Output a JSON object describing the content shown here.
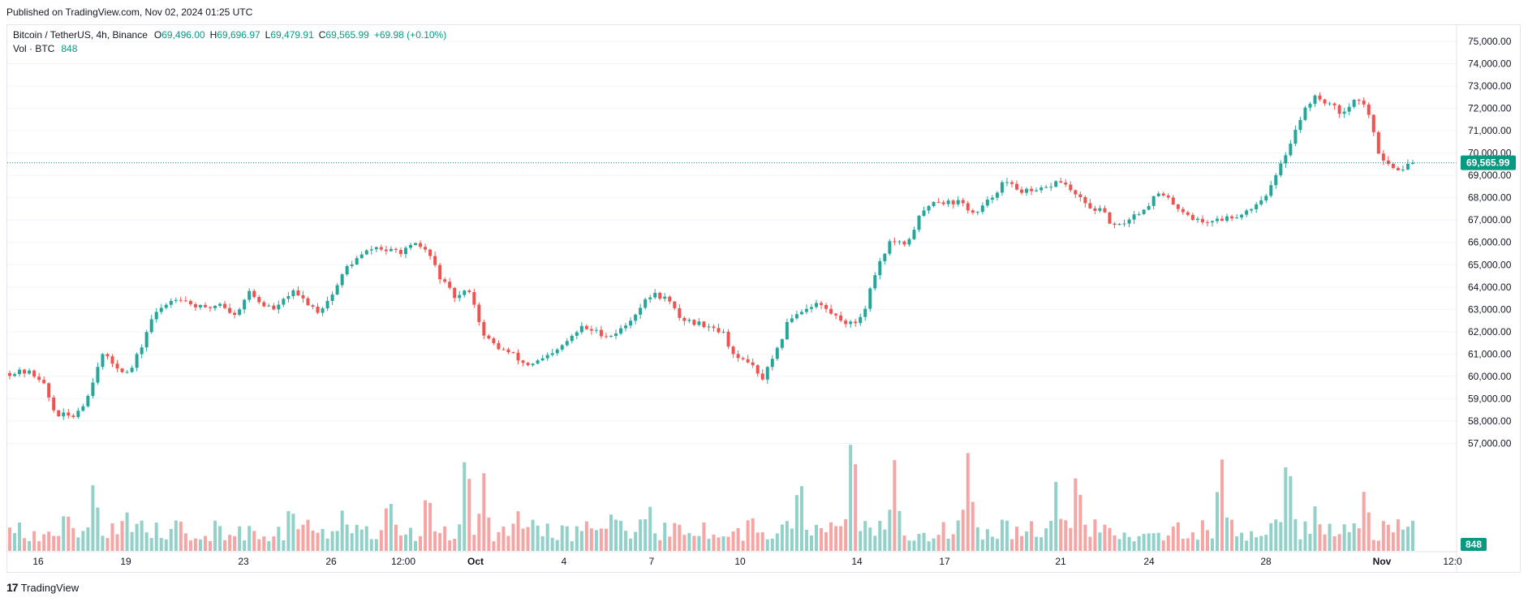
{
  "header": {
    "published": "Published on TradingView.com, Nov 02, 2024 01:25 UTC"
  },
  "legend": {
    "symbol": "Bitcoin / TetherUS, 4h, Binance",
    "o_label": "O",
    "o_value": "69,496.00",
    "h_label": "H",
    "h_value": "69,696.97",
    "l_label": "L",
    "l_value": "69,479.91",
    "c_label": "C",
    "c_value": "69,565.99",
    "change": "+69.98 (+0.10%)",
    "vol_label": "Vol · BTC",
    "vol_value": "848"
  },
  "footer": {
    "logo_glyph": "17",
    "brand": "TradingView"
  },
  "colors": {
    "up": "#26a69a",
    "down": "#ef5350",
    "up_vol": "#92d1c9",
    "down_vol": "#f5a5a4",
    "last_price": "#089981",
    "grid": "#f0f3fa"
  },
  "chart_data": {
    "type": "candlestick",
    "symbol": "Bitcoin / TetherUS",
    "interval": "4h",
    "exchange": "Binance",
    "price_axis_labels": [
      "75,000.00",
      "74,000.00",
      "73,000.00",
      "72,000.00",
      "71,000.00",
      "70,000.00",
      "69,000.00",
      "68,000.00",
      "67,000.00",
      "66,000.00",
      "65,000.00",
      "64,000.00",
      "63,000.00",
      "62,000.00",
      "61,000.00",
      "60,000.00",
      "59,000.00",
      "58,000.00",
      "57,000.00"
    ],
    "last_price_label": "69,565.99",
    "last_volume_label": "848",
    "time_axis_labels": [
      {
        "label": "16",
        "bold": false
      },
      {
        "label": "19",
        "bold": false
      },
      {
        "label": "23",
        "bold": false
      },
      {
        "label": "26",
        "bold": false
      },
      {
        "label": "12:00",
        "bold": false
      },
      {
        "label": "Oct",
        "bold": true
      },
      {
        "label": "4",
        "bold": false
      },
      {
        "label": "7",
        "bold": false
      },
      {
        "label": "10",
        "bold": false
      },
      {
        "label": "14",
        "bold": false
      },
      {
        "label": "17",
        "bold": false
      },
      {
        "label": "21",
        "bold": false
      },
      {
        "label": "24",
        "bold": false
      },
      {
        "label": "28",
        "bold": false
      },
      {
        "label": "Nov",
        "bold": true
      },
      {
        "label": "12:0",
        "bold": false
      }
    ],
    "price_range": [
      56400,
      75400
    ],
    "last_price": 69566,
    "candle_count": 288,
    "anchors": [
      [
        0,
        60150
      ],
      [
        5,
        60200
      ],
      [
        9,
        59900
      ],
      [
        13,
        58300
      ],
      [
        18,
        58200
      ],
      [
        22,
        59000
      ],
      [
        26,
        61000
      ],
      [
        30,
        60500
      ],
      [
        34,
        60100
      ],
      [
        38,
        61500
      ],
      [
        40,
        62500
      ],
      [
        44,
        63200
      ],
      [
        48,
        63600
      ],
      [
        52,
        63200
      ],
      [
        56,
        63000
      ],
      [
        60,
        63300
      ],
      [
        64,
        62700
      ],
      [
        68,
        63800
      ],
      [
        72,
        63200
      ],
      [
        76,
        63000
      ],
      [
        80,
        63800
      ],
      [
        84,
        63400
      ],
      [
        88,
        62900
      ],
      [
        92,
        63700
      ],
      [
        96,
        64900
      ],
      [
        100,
        65400
      ],
      [
        104,
        65800
      ],
      [
        108,
        65600
      ],
      [
        112,
        65600
      ],
      [
        116,
        65900
      ],
      [
        119,
        65600
      ],
      [
        123,
        64300
      ],
      [
        127,
        63500
      ],
      [
        131,
        63900
      ],
      [
        135,
        61800
      ],
      [
        139,
        61300
      ],
      [
        143,
        61000
      ],
      [
        147,
        60500
      ],
      [
        151,
        60700
      ],
      [
        155,
        61000
      ],
      [
        159,
        61600
      ],
      [
        163,
        62200
      ],
      [
        167,
        62000
      ],
      [
        171,
        61800
      ],
      [
        175,
        62200
      ],
      [
        179,
        63000
      ],
      [
        183,
        63700
      ],
      [
        187,
        63500
      ],
      [
        191,
        62600
      ],
      [
        195,
        62400
      ],
      [
        199,
        62300
      ],
      [
        203,
        62000
      ],
      [
        207,
        60700
      ],
      [
        210,
        60800
      ],
      [
        214,
        59800
      ],
      [
        218,
        60900
      ],
      [
        222,
        62600
      ],
      [
        226,
        63000
      ],
      [
        230,
        63300
      ],
      [
        235,
        62700
      ],
      [
        240,
        62300
      ],
      [
        243,
        62800
      ],
      [
        247,
        64900
      ],
      [
        251,
        66100
      ],
      [
        255,
        65800
      ],
      [
        259,
        67100
      ],
      [
        263,
        67900
      ],
      [
        267,
        67800
      ],
      [
        271,
        67800
      ],
      [
        275,
        67200
      ],
      [
        279,
        67900
      ],
      [
        283,
        68700
      ],
      [
        287,
        68400
      ],
      [
        291,
        68200
      ],
      [
        295,
        68400
      ],
      [
        299,
        68800
      ],
      [
        303,
        68200
      ],
      [
        307,
        67600
      ],
      [
        311,
        67400
      ],
      [
        315,
        66600
      ],
      [
        319,
        67100
      ],
      [
        323,
        67500
      ],
      [
        327,
        68200
      ],
      [
        331,
        67800
      ],
      [
        335,
        67300
      ],
      [
        339,
        66900
      ],
      [
        343,
        67000
      ],
      [
        347,
        67100
      ],
      [
        351,
        67300
      ],
      [
        355,
        67700
      ],
      [
        359,
        68400
      ],
      [
        363,
        69800
      ],
      [
        367,
        71400
      ],
      [
        371,
        72500
      ],
      [
        375,
        72300
      ],
      [
        379,
        71800
      ],
      [
        383,
        72400
      ],
      [
        386,
        72200
      ],
      [
        390,
        70000
      ],
      [
        394,
        69300
      ],
      [
        398,
        69400
      ],
      [
        401,
        69500
      ]
    ],
    "volume_range": [
      0,
      20000
    ],
    "volume_peaks": [
      [
        16,
        6000
      ],
      [
        24,
        9500
      ],
      [
        33,
        5800
      ],
      [
        37,
        5000
      ],
      [
        48,
        5200
      ],
      [
        59,
        4800
      ],
      [
        80,
        6700
      ],
      [
        95,
        5800
      ],
      [
        108,
        7800
      ],
      [
        119,
        8600
      ],
      [
        130,
        14000
      ],
      [
        135,
        10000
      ],
      [
        145,
        5400
      ],
      [
        171,
        5100
      ],
      [
        182,
        6600
      ],
      [
        190,
        4700
      ],
      [
        211,
        5500
      ],
      [
        225,
        10500
      ],
      [
        240,
        16800
      ],
      [
        252,
        11500
      ],
      [
        273,
        12800
      ],
      [
        298,
        8800
      ],
      [
        304,
        11200
      ],
      [
        345,
        13100
      ],
      [
        364,
        13800
      ],
      [
        372,
        6200
      ],
      [
        386,
        8500
      ]
    ]
  }
}
